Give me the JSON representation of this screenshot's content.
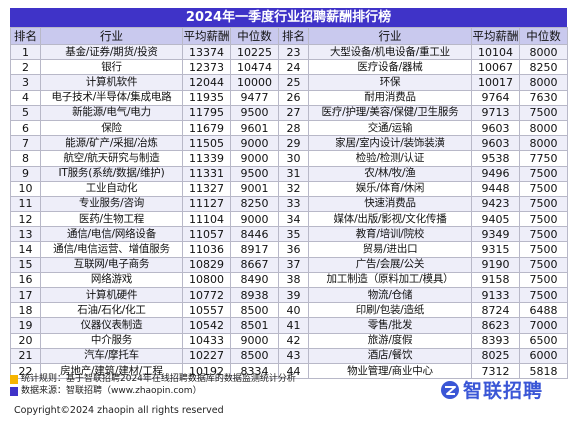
{
  "title": "2024年一季度行业招聘薪酬排行榜",
  "headers": [
    "排名",
    "行业",
    "平均薪酬",
    "中位数",
    "排名",
    "行业",
    "平均薪酬",
    "中位数"
  ],
  "left_rows": [
    {
      "rank": "1",
      "industry": "基金/证券/期货/投资",
      "avg": "13374",
      "median": "10225"
    },
    {
      "rank": "2",
      "industry": "银行",
      "avg": "12373",
      "median": "10474"
    },
    {
      "rank": "3",
      "industry": "计算机软件",
      "avg": "12044",
      "median": "10000"
    },
    {
      "rank": "4",
      "industry": "电子技术/半导体/集成电路",
      "avg": "11935",
      "median": "9477"
    },
    {
      "rank": "5",
      "industry": "新能源/电气/电力",
      "avg": "11795",
      "median": "9500"
    },
    {
      "rank": "6",
      "industry": "保险",
      "avg": "11679",
      "median": "9601"
    },
    {
      "rank": "7",
      "industry": "能源/矿产/采掘/冶炼",
      "avg": "11505",
      "median": "9000"
    },
    {
      "rank": "8",
      "industry": "航空/航天研究与制造",
      "avg": "11339",
      "median": "9000"
    },
    {
      "rank": "9",
      "industry": "IT服务(系统/数据/维护)",
      "avg": "11331",
      "median": "9500"
    },
    {
      "rank": "10",
      "industry": "工业自动化",
      "avg": "11327",
      "median": "9001"
    },
    {
      "rank": "11",
      "industry": "专业服务/咨询",
      "avg": "11127",
      "median": "8250"
    },
    {
      "rank": "12",
      "industry": "医药/生物工程",
      "avg": "11104",
      "median": "9000"
    },
    {
      "rank": "13",
      "industry": "通信/电信/网络设备",
      "avg": "11057",
      "median": "8446"
    },
    {
      "rank": "14",
      "industry": "通信/电信运营、增值服务",
      "avg": "11036",
      "median": "8917"
    },
    {
      "rank": "15",
      "industry": "互联网/电子商务",
      "avg": "10829",
      "median": "8667"
    },
    {
      "rank": "16",
      "industry": "网络游戏",
      "avg": "10800",
      "median": "8490"
    },
    {
      "rank": "17",
      "industry": "计算机硬件",
      "avg": "10772",
      "median": "8938"
    },
    {
      "rank": "18",
      "industry": "石油/石化/化工",
      "avg": "10557",
      "median": "8500"
    },
    {
      "rank": "19",
      "industry": "仪器仪表制造",
      "avg": "10542",
      "median": "8501"
    },
    {
      "rank": "20",
      "industry": "中介服务",
      "avg": "10433",
      "median": "9000"
    },
    {
      "rank": "21",
      "industry": "汽车/摩托车",
      "avg": "10227",
      "median": "8500"
    },
    {
      "rank": "22",
      "industry": "房地产/建筑/建材/工程",
      "avg": "10192",
      "median": "8334"
    }
  ],
  "right_rows": [
    {
      "rank": "23",
      "industry": "大型设备/机电设备/重工业",
      "avg": "10104",
      "median": "8000"
    },
    {
      "rank": "24",
      "industry": "医疗设备/器械",
      "avg": "10067",
      "median": "8250"
    },
    {
      "rank": "25",
      "industry": "环保",
      "avg": "10017",
      "median": "8000"
    },
    {
      "rank": "26",
      "industry": "耐用消费品",
      "avg": "9764",
      "median": "7630"
    },
    {
      "rank": "27",
      "industry": "医疗/护理/美容/保健/卫生服务",
      "avg": "9713",
      "median": "7500"
    },
    {
      "rank": "28",
      "industry": "交通/运输",
      "avg": "9603",
      "median": "8000"
    },
    {
      "rank": "29",
      "industry": "家居/室内设计/装饰装潢",
      "avg": "9603",
      "median": "8000"
    },
    {
      "rank": "30",
      "industry": "检验/检测/认证",
      "avg": "9538",
      "median": "7750"
    },
    {
      "rank": "31",
      "industry": "农/林/牧/渔",
      "avg": "9496",
      "median": "7500"
    },
    {
      "rank": "32",
      "industry": "娱乐/体育/休闲",
      "avg": "9448",
      "median": "7500"
    },
    {
      "rank": "33",
      "industry": "快速消费品",
      "avg": "9423",
      "median": "7500"
    },
    {
      "rank": "34",
      "industry": "媒体/出版/影视/文化传播",
      "avg": "9405",
      "median": "7500"
    },
    {
      "rank": "35",
      "industry": "教育/培训/院校",
      "avg": "9349",
      "median": "7500"
    },
    {
      "rank": "36",
      "industry": "贸易/进出口",
      "avg": "9315",
      "median": "7500"
    },
    {
      "rank": "37",
      "industry": "广告/会展/公关",
      "avg": "9190",
      "median": "7500"
    },
    {
      "rank": "38",
      "industry": "加工制造（原料加工/模具）",
      "avg": "9158",
      "median": "7500"
    },
    {
      "rank": "39",
      "industry": "物流/仓储",
      "avg": "9133",
      "median": "7500"
    },
    {
      "rank": "40",
      "industry": "印刷/包装/造纸",
      "avg": "8724",
      "median": "6488"
    },
    {
      "rank": "41",
      "industry": "零售/批发",
      "avg": "8623",
      "median": "7000"
    },
    {
      "rank": "42",
      "industry": "旅游/度假",
      "avg": "8393",
      "median": "6500"
    },
    {
      "rank": "43",
      "industry": "酒店/餐饮",
      "avg": "8025",
      "median": "6000"
    },
    {
      "rank": "44",
      "industry": "物业管理/商业中心",
      "avg": "7312",
      "median": "5818"
    }
  ],
  "notes": {
    "stat_rule": "统计规则：基于智联招聘2024年在线招聘数据库的数据监测统计分析",
    "source": "数据来源：智联招聘（www.zhaopin.com）",
    "copyright": "Copyright©2024 zhaopin all rights reserved"
  },
  "logo": {
    "text": "智联招聘",
    "color": "#3a56d6"
  },
  "colors": {
    "title_bg": "#3f33c8",
    "header_bg": "#c9c9ee",
    "stripe": "#eeeef9",
    "marker_yellow": "#f6b400",
    "marker_blue": "#3f33c8"
  }
}
